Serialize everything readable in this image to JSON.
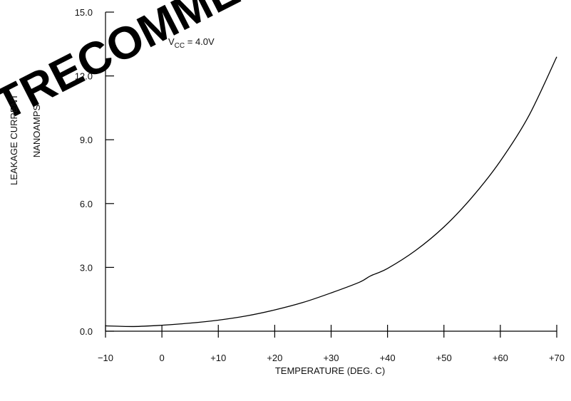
{
  "watermark": "TRECOMMEN",
  "chart_data": {
    "type": "line",
    "title": "",
    "xlabel": "TEMPERATURE (DEG. C)",
    "ylabel_lines": [
      "LEAKAGE CURRENT",
      "NANOAMPS"
    ],
    "xlim": [
      -10,
      70
    ],
    "ylim": [
      0,
      15
    ],
    "x_ticks": [
      -10,
      0,
      10,
      20,
      30,
      40,
      50,
      60,
      70
    ],
    "x_tick_labels": [
      "−10",
      "0",
      "+10",
      "+20",
      "+30",
      "+40",
      "+50",
      "+60",
      "+70"
    ],
    "y_ticks": [
      0,
      3,
      6,
      9,
      12,
      15
    ],
    "y_tick_labels": [
      "0.0",
      "3.0",
      "6.0",
      "9.0",
      "12.0",
      "15.0"
    ],
    "grid": false,
    "annotation": {
      "main": "V",
      "sub": "CC",
      "rest": " = 4.0V"
    },
    "series": [
      {
        "x": [
          -10,
          -5,
          0,
          5,
          10,
          15,
          20,
          25,
          30,
          35,
          37,
          40,
          45,
          50,
          55,
          60,
          65,
          70
        ],
        "y": [
          0.25,
          0.22,
          0.28,
          0.38,
          0.52,
          0.72,
          1.0,
          1.35,
          1.8,
          2.3,
          2.6,
          2.95,
          3.8,
          4.9,
          6.3,
          8.0,
          10.1,
          12.9
        ]
      }
    ]
  }
}
